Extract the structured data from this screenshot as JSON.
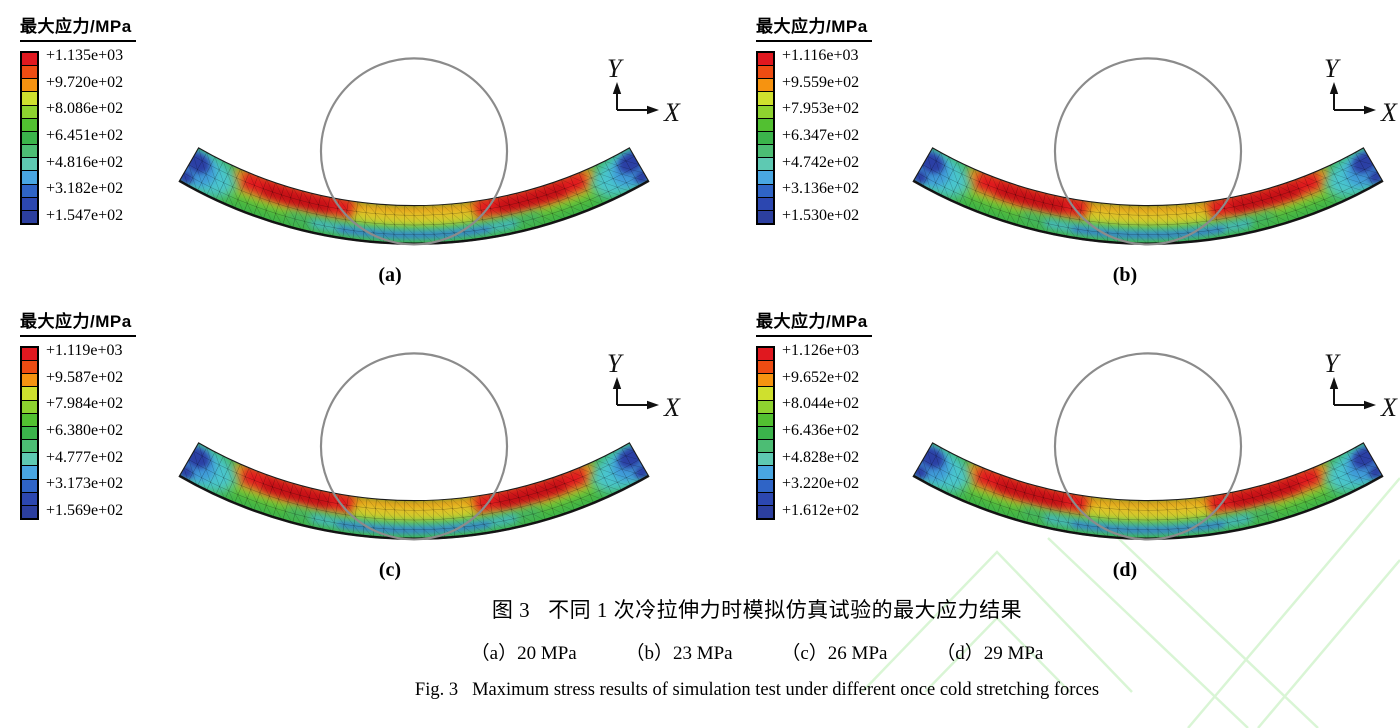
{
  "figure": {
    "axis": {
      "x_label": "X",
      "y_label": "Y"
    },
    "panels": [
      {
        "id": "a",
        "label": "(a)",
        "force": "20 MPa",
        "legend_title": "最大应力/MPa",
        "values": [
          "+1.135e+03",
          "+9.720e+02",
          "+8.086e+02",
          "+6.451e+02",
          "+4.816e+02",
          "+3.182e+02",
          "+1.547e+02"
        ]
      },
      {
        "id": "b",
        "label": "(b)",
        "force": "23 MPa",
        "legend_title": "最大应力/MPa",
        "values": [
          "+1.116e+03",
          "+9.559e+02",
          "+7.953e+02",
          "+6.347e+02",
          "+4.742e+02",
          "+3.136e+02",
          "+1.530e+02"
        ]
      },
      {
        "id": "c",
        "label": "(c)",
        "force": "26 MPa",
        "legend_title": "最大应力/MPa",
        "values": [
          "+1.119e+03",
          "+9.587e+02",
          "+7.984e+02",
          "+6.380e+02",
          "+4.777e+02",
          "+3.173e+02",
          "+1.569e+02"
        ]
      },
      {
        "id": "d",
        "label": "(d)",
        "force": "29 MPa",
        "legend_title": "最大应力/MPa",
        "values": [
          "+1.126e+03",
          "+9.652e+02",
          "+8.044e+02",
          "+6.436e+02",
          "+4.828e+02",
          "+3.220e+02",
          "+1.612e+02"
        ]
      }
    ],
    "caption_cn": {
      "fig_no": "图 3",
      "text": "不同 1 次冷拉伸力时模拟仿真试验的最大应力结果"
    },
    "caption_sub": [
      "（a）20 MPa",
      "（b）23 MPa",
      "（c）26 MPa",
      "（d）29 MPa"
    ],
    "caption_en": {
      "fig_no": "Fig. 3",
      "text": "Maximum stress results of simulation test under different once cold stretching forces"
    },
    "colors": {
      "colorbar": [
        "#e0181f",
        "#ee4c12",
        "#f69310",
        "#cfe02e",
        "#8ed32f",
        "#52c031",
        "#3bb44b",
        "#4cbd74",
        "#5ec9b2",
        "#49a6e2",
        "#2f64c6",
        "#2c47b0",
        "#2c3f9f"
      ],
      "deep_red": "#c21016",
      "center_yellow": "#e6c32b",
      "base_green": "#3fb446",
      "green_teal_bottom": "#3db069",
      "teal_streak": "#45b9d4",
      "blue_streak": "#2f6cc8",
      "teal_patch": "#49c5ce",
      "light_blue_patch": "#3f9ad8",
      "dark_blue_end": "#2b3fa4",
      "circle_gray": "#8b8b8b",
      "outline_black": "#1a1a1a",
      "watermark_green": "#d8f5d3"
    }
  }
}
